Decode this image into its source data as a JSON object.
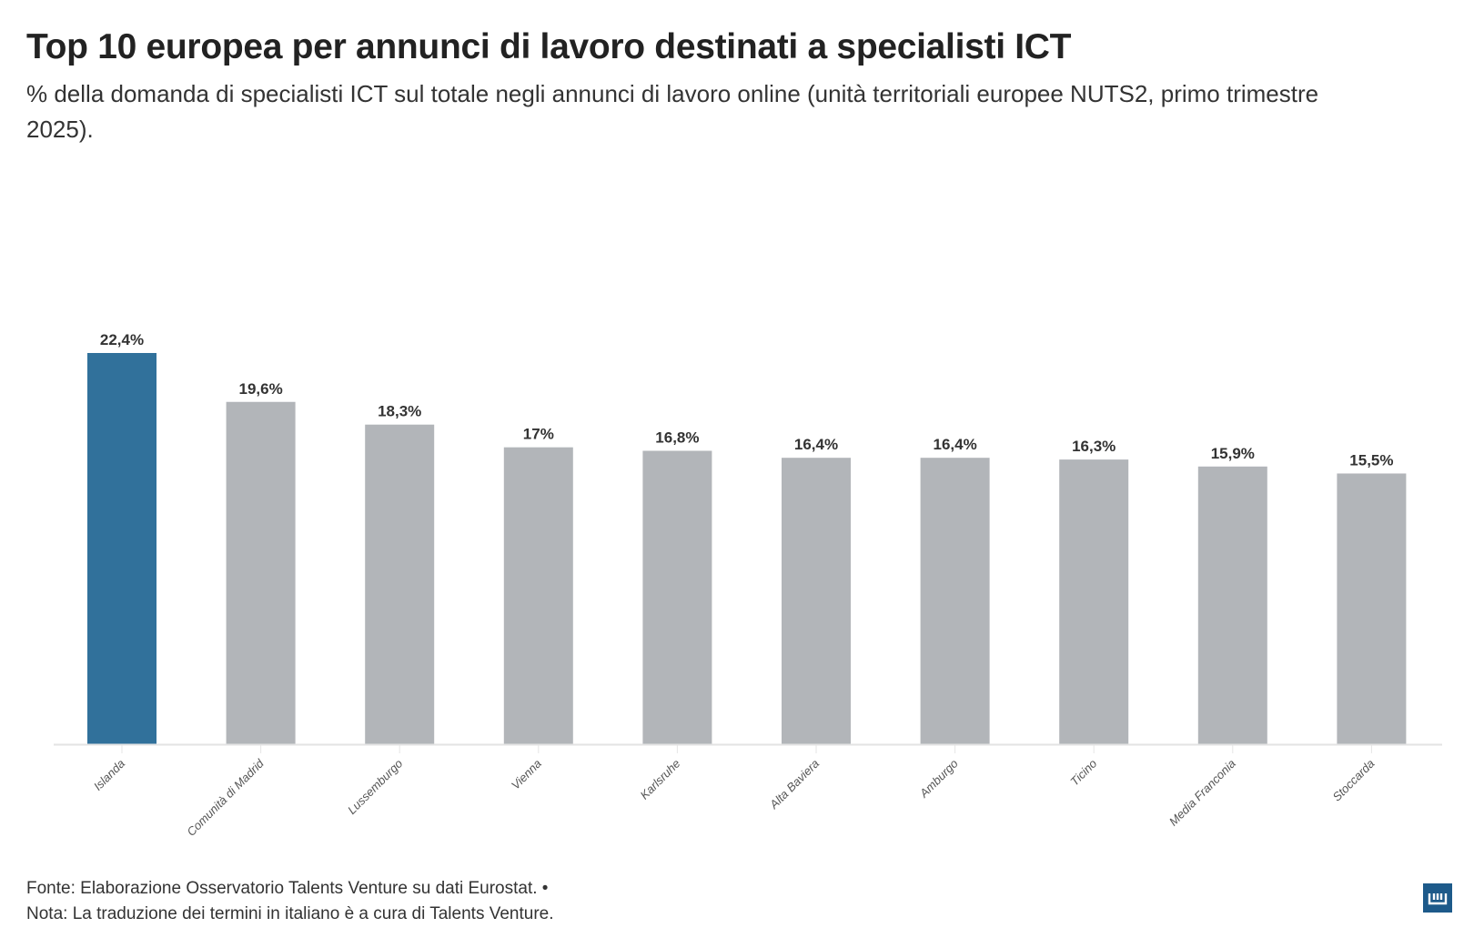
{
  "title": "Top 10 europea per annunci di lavoro destinati a specialisti ICT",
  "subtitle": "% della domanda di specialisti ICT sul totale negli annunci di lavoro online (unità territoriali europee NUTS2, primo trimestre 2025).",
  "footer": {
    "source": "Fonte: Elaborazione Osservatorio Talents Venture su dati Eurostat. •",
    "note": "Nota: La traduzione dei termini in italiano è a cura di Talents Venture."
  },
  "logo_icon": "datawrapper-logo-icon",
  "chart_data": {
    "type": "bar",
    "categories": [
      "Islanda",
      "Comunità di Madrid",
      "Lussemburgo",
      "Vienna",
      "Karlsruhe",
      "Alta Baviera",
      "Amburgo",
      "Ticino",
      "Media Franconia",
      "Stoccarda"
    ],
    "values": [
      22.4,
      19.6,
      18.3,
      17,
      16.8,
      16.4,
      16.4,
      16.3,
      15.9,
      15.5
    ],
    "data_labels": [
      "22,4%",
      "19,6%",
      "18,3%",
      "17%",
      "16,8%",
      "16,4%",
      "16,4%",
      "16,3%",
      "15,9%",
      "15,5%"
    ],
    "highlight_category": "Islanda",
    "colors": {
      "highlight": "#31719b",
      "default": "#b2b5b9"
    },
    "ylim": [
      0,
      22.4
    ],
    "grid": false,
    "xlabel": "",
    "ylabel": ""
  }
}
